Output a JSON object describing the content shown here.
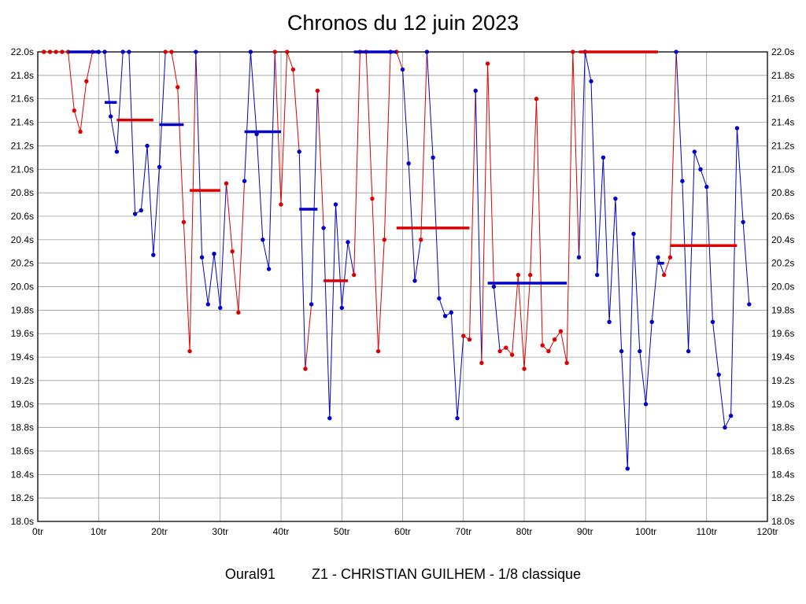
{
  "title": "Chronos du 12 juin 2023",
  "footer": {
    "club": "Oural91",
    "session": "Z1 - CHRISTIAN GUILHEM - 1/8 classique"
  },
  "chart_data": {
    "type": "line",
    "title": "Chronos du 12 juin 2023",
    "xlabel_unit": "tr",
    "ylabel_unit": "s",
    "xlim": [
      0,
      120
    ],
    "ylim": [
      18.0,
      22.0
    ],
    "x_tick_step": 10,
    "y_tick_step": 0.2,
    "grid": true,
    "legend": "none",
    "x_ticks": [
      "0tr",
      "10tr",
      "20tr",
      "30tr",
      "40tr",
      "50tr",
      "60tr",
      "70tr",
      "80tr",
      "90tr",
      "100tr",
      "110tr",
      "120tr"
    ],
    "y_ticks": [
      "22.0s",
      "21.8s",
      "21.6s",
      "21.4s",
      "21.2s",
      "21.0s",
      "20.8s",
      "20.6s",
      "20.4s",
      "20.2s",
      "20.0s",
      "19.8s",
      "19.6s",
      "19.4s",
      "19.2s",
      "19.0s",
      "18.8s",
      "18.6s",
      "18.4s",
      "18.2s",
      "18.0s"
    ],
    "palette": {
      "R": "#dd0000",
      "B": "#0000c8"
    },
    "times": [
      22,
      22,
      22,
      22,
      22,
      21.5,
      21.32,
      21.75,
      22,
      22,
      22,
      21.45,
      21.15,
      22,
      22,
      20.62,
      20.65,
      21.2,
      20.27,
      21.02,
      22,
      22,
      21.7,
      20.55,
      19.45,
      22,
      20.25,
      19.85,
      20.28,
      19.82,
      20.88,
      20.3,
      19.78,
      20.9,
      22,
      21.3,
      20.4,
      20.15,
      22,
      20.7,
      22,
      21.85,
      21.15,
      19.3,
      19.85,
      21.67,
      20.5,
      18.88,
      20.7,
      19.82,
      20.38,
      20.1,
      22,
      22,
      20.75,
      19.45,
      20.4,
      22,
      22,
      21.85,
      21.05,
      20.05,
      20.4,
      22,
      21.1,
      19.9,
      19.75,
      19.78,
      18.88,
      19.58,
      19.55,
      21.67,
      19.35,
      21.9,
      20.0,
      19.45,
      19.48,
      19.42,
      20.1,
      19.3,
      20.1,
      21.6,
      19.5,
      19.45,
      19.55,
      19.62,
      19.35,
      22,
      20.25,
      22,
      21.75,
      20.1,
      21.1,
      19.7,
      20.75,
      19.45,
      18.45,
      20.45,
      19.45,
      19.0,
      19.7,
      20.25,
      20.1,
      20.25,
      22,
      20.9,
      19.45,
      21.15,
      21.0,
      20.85,
      19.7,
      19.25,
      18.8,
      18.9,
      21.35,
      20.55,
      19.85
    ],
    "colors_seq": "RRRRRRRRRBBBBBBBBBBBRRRRRBBBBBRRRBBBBBRRRRBRBRBBBBBRRRRRRBRBBBRBBBBBBRRBRRBRRRRRRRRRRRRRBBBBBBBBBBBBBBRRBBBBBBBBBBBBB",
    "mean_bars": [
      {
        "from": 5,
        "to": 10,
        "t": 22.0,
        "c": "B"
      },
      {
        "from": 11,
        "to": 13,
        "t": 21.57,
        "c": "B"
      },
      {
        "from": 13,
        "to": 19,
        "t": 21.42,
        "c": "R"
      },
      {
        "from": 20,
        "to": 24,
        "t": 21.38,
        "c": "B"
      },
      {
        "from": 25,
        "to": 30,
        "t": 20.82,
        "c": "R"
      },
      {
        "from": 34,
        "to": 40,
        "t": 21.32,
        "c": "B"
      },
      {
        "from": 43,
        "to": 46,
        "t": 20.66,
        "c": "B"
      },
      {
        "from": 47,
        "to": 51,
        "t": 20.05,
        "c": "R"
      },
      {
        "from": 52,
        "to": 59,
        "t": 22.0,
        "c": "B"
      },
      {
        "from": 59,
        "to": 71,
        "t": 20.5,
        "c": "R"
      },
      {
        "from": 74,
        "to": 87,
        "t": 20.03,
        "c": "B"
      },
      {
        "from": 89,
        "to": 102,
        "t": 22.0,
        "c": "R"
      },
      {
        "from": 102,
        "to": 103,
        "t": 20.2,
        "c": "B"
      },
      {
        "from": 104,
        "to": 115,
        "t": 20.35,
        "c": "R"
      }
    ]
  }
}
